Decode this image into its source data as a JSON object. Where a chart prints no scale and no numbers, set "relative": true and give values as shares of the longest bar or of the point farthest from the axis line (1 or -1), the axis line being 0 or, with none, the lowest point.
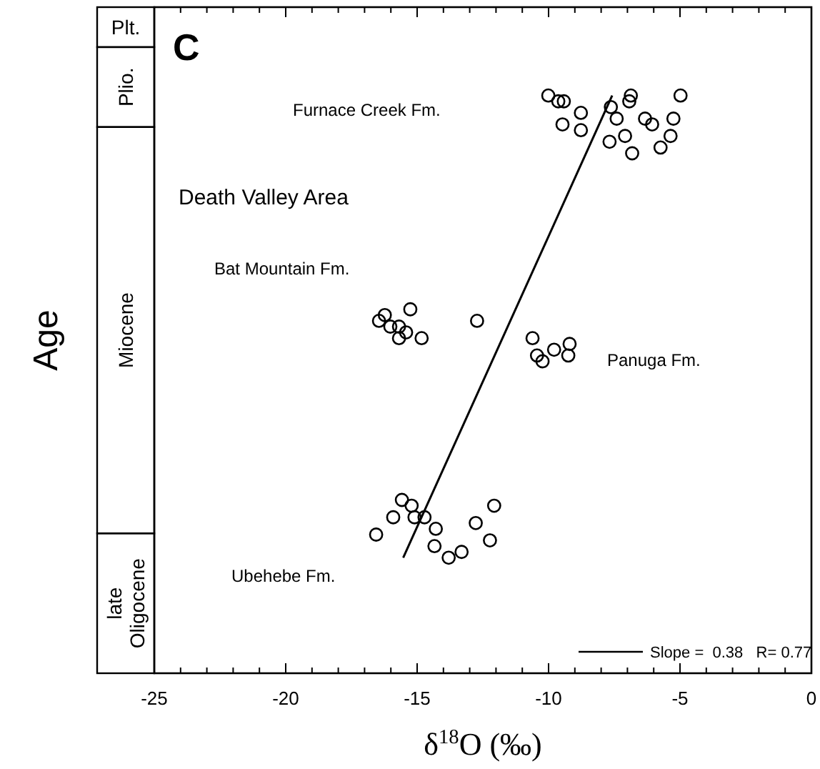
{
  "chart_data": {
    "type": "scatter",
    "relative": true,
    "xlabel": "δ$^{18}$O (‰)",
    "ylabel": "Age",
    "annotations": [
      "C",
      "Death Valley Area",
      "Furnace Creek Fm.",
      "Bat Mountain Fm.",
      "Panuga Fm.",
      "Ubehebe Fm.",
      "Plt.",
      "Plio.",
      "Miocene",
      "late Oligocene"
    ],
    "xlim": [
      -25,
      0
    ],
    "xticks": [
      -25,
      {
        "value": -24,
        "label": null
      },
      {
        "value": -23,
        "label": null
      },
      {
        "value": -22,
        "label": null
      },
      {
        "value": -21,
        "label": null
      },
      -20,
      {
        "value": -19,
        "label": null
      },
      {
        "value": -18,
        "label": null
      },
      {
        "value": -17,
        "label": null
      },
      {
        "value": -16,
        "label": null
      },
      -15,
      {
        "value": -14,
        "label": null
      },
      {
        "value": -13,
        "label": null
      },
      {
        "value": -12,
        "label": null
      },
      {
        "value": -11,
        "label": null
      },
      -10,
      {
        "value": -9,
        "label": null
      },
      {
        "value": -8,
        "label": null
      },
      {
        "value": -7,
        "label": null
      },
      {
        "value": -6,
        "label": null
      },
      -5,
      {
        "value": -4,
        "label": null
      },
      {
        "value": -3,
        "label": null
      },
      {
        "value": -2,
        "label": null
      },
      {
        "value": -1,
        "label": null
      },
      0
    ],
    "grid": false,
    "legend": "bottom right",
    "marker": "circle",
    "series": [
      {
        "color": "#000000",
        "x": [
          -10.01,
          -9.63,
          -9.42,
          -8.77,
          -9.47,
          -8.77,
          -7.63,
          -7.41,
          -6.87,
          -6.93,
          -6.33,
          -6.06,
          -4.98,
          -5.25,
          -5.36,
          -5.74,
          -7.68,
          -7.09,
          -6.82,
          -16.45,
          -16.23,
          -16.02,
          -15.69,
          -15.69,
          -15.42,
          -15.26,
          -14.83,
          -12.72,
          -10.61,
          -10.44,
          -10.23,
          -9.79,
          -9.25,
          -9.2,
          -15.58,
          -15.21,
          -15.91,
          -15.1,
          -14.72,
          -14.29,
          -16.56,
          -14.34,
          -13.8,
          -13.31,
          -12.77,
          -12.07,
          -12.23
        ],
        "values": [
          1.0,
          0.99,
          0.99,
          0.97,
          0.95,
          0.94,
          0.98,
          0.96,
          1.0,
          0.99,
          0.96,
          0.95,
          1.0,
          0.96,
          0.93,
          0.91,
          0.92,
          0.93,
          0.9,
          0.61,
          0.62,
          0.6,
          0.6,
          0.58,
          0.59,
          0.63,
          0.58,
          0.61,
          0.58,
          0.55,
          0.54,
          0.56,
          0.55,
          0.57,
          0.3,
          0.29,
          0.27,
          0.27,
          0.27,
          0.25,
          0.24,
          0.22,
          0.2,
          0.21,
          0.26,
          0.29,
          0.23
        ]
      },
      {
        "type": "line",
        "name": "Slope =  0.38   R= 0.77",
        "color": "#000000",
        "marker": "none",
        "x": [
          -15.53,
          -7.58
        ],
        "values": [
          0.2,
          1.0
        ]
      }
    ]
  }
}
